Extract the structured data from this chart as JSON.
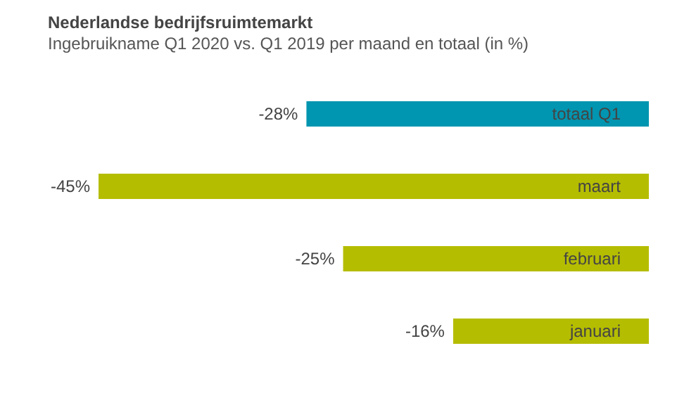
{
  "chart_data": {
    "type": "bar",
    "orientation": "horizontal",
    "title": "Nederlandse bedrijfsruimtemarkt",
    "subtitle": "Ingebruikname Q1 2020 vs. Q1 2019 per maand en totaal (in %)",
    "categories": [
      "totaal Q1",
      "maart",
      "februari",
      "januari"
    ],
    "values": [
      -28,
      -45,
      -25,
      -16
    ],
    "colors": [
      "#0095b0",
      "#b5bd00",
      "#b5bd00",
      "#b5bd00"
    ],
    "value_labels": [
      "-28%",
      "-45%",
      "-25%",
      "-16%"
    ],
    "grid": false,
    "legend": false
  }
}
